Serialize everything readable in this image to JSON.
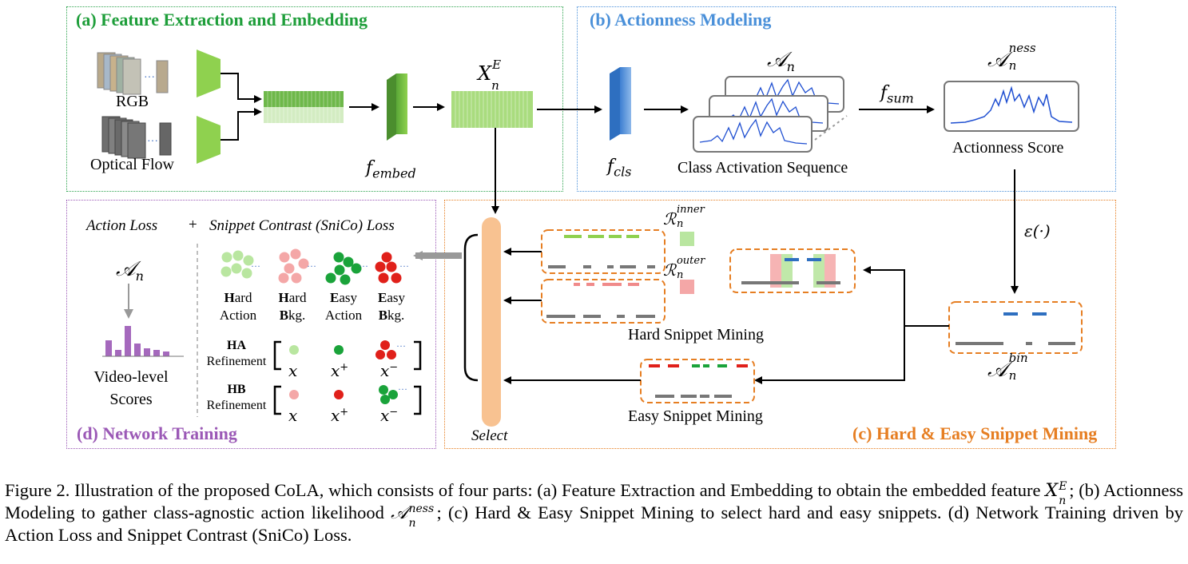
{
  "panels": {
    "a": {
      "title": "(a) Feature Extraction and Embedding",
      "color": "#1e9e3a"
    },
    "b": {
      "title": "(b) Actionness Modeling",
      "color": "#4a90d9"
    },
    "c": {
      "title": "(c) Hard & Easy Snippet Mining",
      "color": "#e67e22"
    },
    "d": {
      "title": "(d) Network Training",
      "color": "#9b59b6"
    }
  },
  "feature": {
    "rgb": "RGB",
    "optical_flow": "Optical Flow",
    "f_embed": "f",
    "f_embed_sub": "embed",
    "x_main": "X",
    "x_sub": "n",
    "x_sup": "E"
  },
  "actionness": {
    "f_cls": "f",
    "f_cls_sub": "cls",
    "a_n": "𝒜",
    "a_n_sub": "n",
    "f_sum": "f",
    "f_sum_sub": "sum",
    "a_ness": "𝒜",
    "a_ness_sub": "n",
    "a_ness_sup": "ness",
    "cas_label": "Class Activation Sequence",
    "score_label": "Actionness Score",
    "epsilon": "ε(·)"
  },
  "mining": {
    "r_inner": "ℛ",
    "r_inner_sub": "n",
    "r_inner_sup": "inner",
    "r_outer": "ℛ",
    "r_outer_sub": "n",
    "r_outer_sup": "outer",
    "hard_label": "Hard Snippet Mining",
    "easy_label": "Easy Snippet Mining",
    "a_bin": "𝒜",
    "a_bin_sub": "n",
    "a_bin_sup": "bin",
    "select": "Select"
  },
  "training": {
    "action_loss": "Action Loss",
    "plus": "+",
    "snico_loss": "Snippet Contrast (SniCo) Loss",
    "a_n": "𝒜",
    "a_n_sub": "n",
    "video_scores_1": "Video-level",
    "video_scores_2": "Scores",
    "groups": [
      {
        "bold": "H",
        "rest1": "ard",
        "line2": "Action"
      },
      {
        "bold": "H",
        "rest1": "ard",
        "line2b": "B",
        "line2r": "kg."
      },
      {
        "bold": "E",
        "rest1": "asy",
        "line2": "Action"
      },
      {
        "bold": "E",
        "rest1": "asy",
        "line2b": "B",
        "line2r": "kg."
      }
    ],
    "ha": "HA",
    "hb": "HB",
    "refinement": "Refinement",
    "x": "x",
    "x_plus": "x",
    "x_minus": "x",
    "plus_sup": "+",
    "minus_sup": "−",
    "ellipsis": "···"
  },
  "caption": {
    "part1": "Figure 2. Illustration of the proposed CoLA, which consists of four parts: (a) Feature Extraction and Embedding to obtain the embedded feature ",
    "x_main": "X",
    "x_sub": "n",
    "x_sup": "E",
    "part2": "; (b) Actionness Modeling to gather class-agnostic action likelihood ",
    "a_main": "𝒜",
    "a_sub": "n",
    "a_sup": "ness",
    "part3": "; (c) Hard & Easy Snippet Mining to select hard and easy snippets. (d) Network Training driven by Action Loss and Snippet Contrast (SniCo) Loss."
  },
  "colors": {
    "green_feat": "#8fd14f",
    "blue_cls": "#5b9bd5",
    "orange_dash": "#e67e22",
    "select_bar": "#f8c291",
    "bar_purple": "#a569bd",
    "red": "#e0201a",
    "green_dot": "#1aa33a",
    "pink": "#f4a7a7",
    "light_green": "#b9e6a0"
  }
}
